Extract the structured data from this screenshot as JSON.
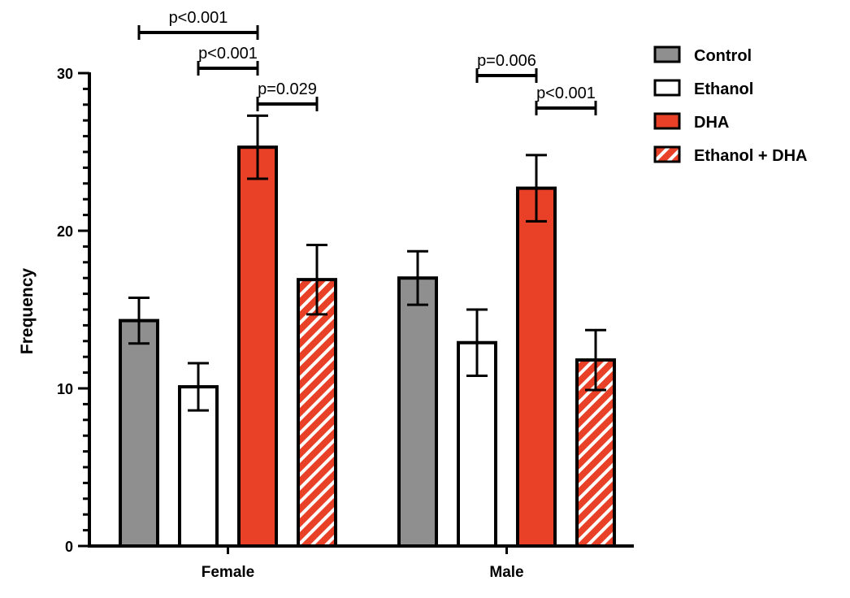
{
  "chart_data": {
    "type": "bar",
    "categories": [
      "Female",
      "Male"
    ],
    "ylabel": "Frequency",
    "ylim": [
      0,
      30
    ],
    "yticks": [
      0,
      10,
      20,
      30
    ],
    "minor_ticks_per_major": 10,
    "series": [
      {
        "name": "Control",
        "values": [
          14.3,
          17.0
        ],
        "errors": [
          1.45,
          1.7
        ],
        "color": "#8f8f8f",
        "pattern": "solid"
      },
      {
        "name": "Ethanol",
        "values": [
          10.1,
          12.9
        ],
        "errors": [
          1.5,
          2.1
        ],
        "color": "#ffffff",
        "pattern": "solid"
      },
      {
        "name": "DHA",
        "values": [
          25.3,
          22.7
        ],
        "errors": [
          2.0,
          2.1
        ],
        "color": "#e84127",
        "pattern": "solid"
      },
      {
        "name": "Ethanol + DHA",
        "values": [
          16.9,
          11.8
        ],
        "errors": [
          2.2,
          1.9
        ],
        "color": "#e84127",
        "pattern": "diagonal-stripes"
      }
    ],
    "significance": [
      {
        "label": "p<0.001",
        "category": "Female",
        "from_series": "Control",
        "to_series": "DHA"
      },
      {
        "label": "p<0.001",
        "category": "Female",
        "from_series": "Ethanol",
        "to_series": "DHA"
      },
      {
        "label": "p=0.029",
        "category": "Female",
        "from_series": "DHA",
        "to_series": "Ethanol + DHA"
      },
      {
        "label": "p=0.006",
        "category": "Male",
        "from_series": "Ethanol",
        "to_series": "DHA"
      },
      {
        "label": "p<0.001",
        "category": "Male",
        "from_series": "DHA",
        "to_series": "Ethanol + DHA"
      }
    ],
    "legend_position": "top-right",
    "grid": false
  }
}
